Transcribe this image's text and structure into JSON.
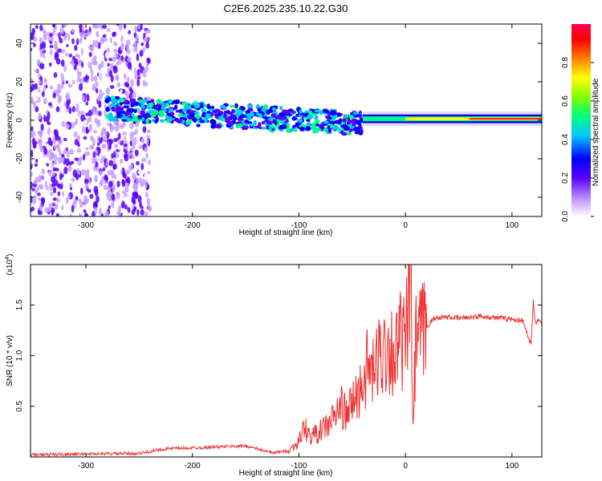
{
  "title": "C2E6.2025.235.10.22.G30",
  "chart_data": [
    {
      "type": "heatmap",
      "name": "spectrogram",
      "xlabel": "Height of straight line (km)",
      "ylabel": "Frequency (Hz)",
      "xlim": [
        -352,
        128
      ],
      "ylim": [
        -50,
        50
      ],
      "xticks": [
        -300,
        -200,
        -100,
        0,
        100
      ],
      "yticks": [
        -40,
        -20,
        0,
        20,
        40
      ],
      "colorbar": {
        "label": "Normalized spectral amplitude",
        "range": [
          0,
          1
        ],
        "ticks": [
          "0.0",
          "0.2",
          "0.4",
          "0.6",
          "0.8"
        ],
        "colors": [
          "#ffffff",
          "#9b46ff",
          "#0000ff",
          "#00c8ff",
          "#00ff80",
          "#80ff00",
          "#ffff00",
          "#ff8000",
          "#ff0000",
          "#ff0080"
        ]
      },
      "features": [
        {
          "region": "noise",
          "x_range": [
            -352,
            -240
          ],
          "freq_range": [
            -50,
            50
          ],
          "amplitude": 0.2
        },
        {
          "region": "weak-noise",
          "x_range": [
            -240,
            -120
          ],
          "freq_range": [
            -50,
            50
          ],
          "amplitude": 0.05
        },
        {
          "region": "band",
          "x_range": [
            -280,
            -40
          ],
          "freq_range": [
            -5,
            12
          ],
          "amplitude": 0.45
        },
        {
          "region": "strong-line",
          "x_range": [
            -40,
            128
          ],
          "freq_range": [
            -2,
            4
          ],
          "amplitude": 0.95
        }
      ]
    },
    {
      "type": "line",
      "name": "snr",
      "xlabel": "Height of straight line (km)",
      "ylabel": "SNR (10 * v/v)",
      "scale_label": "(x10",
      "scale_exp": "4",
      "scale_close": ")",
      "xlim": [
        -352,
        128
      ],
      "ylim": [
        0,
        19000
      ],
      "xticks": [
        -300,
        -200,
        -100,
        0,
        100
      ],
      "yticks": [
        5000,
        10000,
        15000
      ],
      "ytick_labels": [
        "0.5",
        "1.0",
        "1.5"
      ],
      "color": "#f03030",
      "x": [
        -352,
        -300,
        -250,
        -225,
        -200,
        -175,
        -150,
        -125,
        -110,
        -100,
        -95,
        -90,
        -80,
        -70,
        -60,
        -55,
        -50,
        -45,
        -40,
        -35,
        -30,
        -25,
        -20,
        -15,
        -10,
        -5,
        0,
        5,
        7,
        10,
        15,
        20,
        25,
        30,
        40,
        50,
        60,
        70,
        80,
        90,
        100,
        110,
        118,
        120,
        122,
        125,
        128
      ],
      "y": [
        200,
        300,
        350,
        800,
        900,
        1000,
        1100,
        400,
        600,
        1500,
        3000,
        2000,
        2500,
        3500,
        5000,
        4000,
        5500,
        6000,
        7500,
        9000,
        8000,
        10000,
        10500,
        11000,
        10000,
        11500,
        11000,
        18000,
        3000,
        11500,
        12000,
        12800,
        13500,
        13800,
        13800,
        13700,
        13800,
        13900,
        13800,
        13700,
        13600,
        13500,
        11000,
        15500,
        13200,
        13500,
        13400
      ]
    }
  ]
}
